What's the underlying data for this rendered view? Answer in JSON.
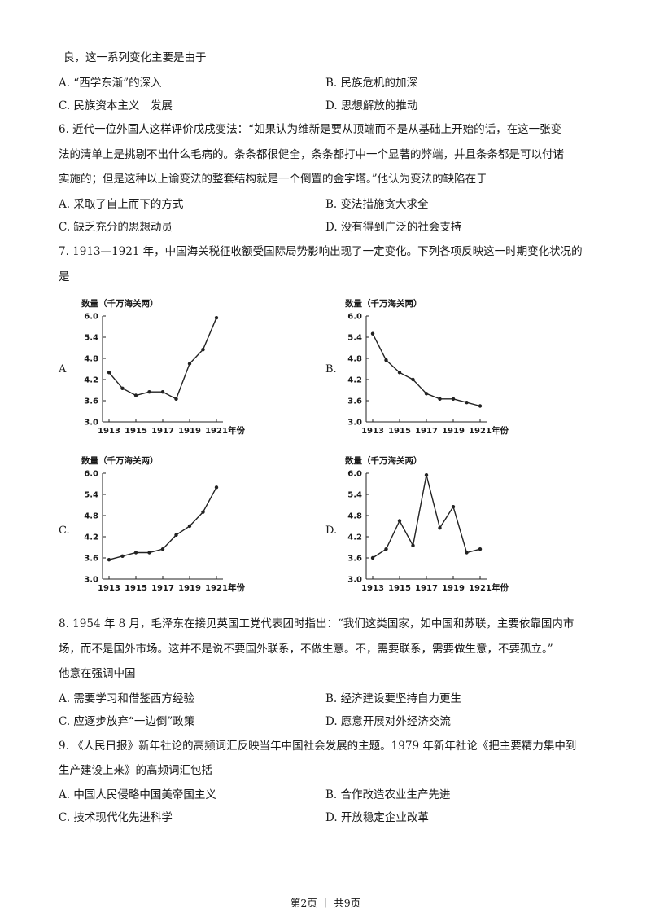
{
  "lines": {
    "l1": "良，这一系列变化主要是由于",
    "q6_1": "6. 近代一位外国人这样评价戊戌变法：“如果认为维新是要从顶端而不是从基础上开始的话，在这一张变",
    "q6_2": "法的清单上是挑剔不出什么毛病的。条条都很健全，条条都打中一个显著的弊端，并且条条都是可以付诸",
    "q6_3": "实施的；但是这种以上谕变法的整套结构就是一个倒置的金字塔。”他认为变法的缺陷在于",
    "q7_1": "7. 1913—1921 年，中国海关税征收额受国际局势影响出现了一定变化。下列各项反映这一时期变化状况的",
    "q7_2": "是",
    "q8_1": "8. 1954 年 8 月，毛泽东在接见英国工党代表团时指出：“我们这类国家，如中国和苏联，主要依靠国内市",
    "q8_2": "场，而不是国外市场。这并不是说不要国外联系，不做生意。不，需要联系，需要做生意，不要孤立。”",
    "q8_3": "他意在强调中国",
    "q9_1": "9. 《人民日报》新年社论的高频词汇反映当年中国社会发展的主题。1979 年新年社论《把主要精力集中到",
    "q9_2": "生产建设上来》的高频词汇包括"
  },
  "q5_options": {
    "a": "A. “西学东渐”的深入",
    "b": "B. 民族危机的加深",
    "c": "C. 民族资本主义　发展",
    "d": "D. 思想解放的推动"
  },
  "q6_options": {
    "a": "A. 采取了自上而下的方式",
    "b": "B. 变法措施贪大求全",
    "c": "C. 缺乏充分的思想动员",
    "d": "D. 没有得到广泛的社会支持"
  },
  "q8_options": {
    "a": "A. 需要学习和借鉴西方经验",
    "b": "B. 经济建设要坚持自力更生",
    "c": "C. 应逐步放弃“一边倒”政策",
    "d": "D. 愿意开展对外经济交流"
  },
  "q9_options": {
    "a": "A. 中国人民侵略中国美帝国主义",
    "b": "B. 合作改造农业生产先进",
    "c": "C. 技术现代化先进科学",
    "d": "D. 开放稳定企业改革"
  },
  "chart_labels": {
    "a": "A",
    "b": "B.",
    "c": "C.",
    "d": "D."
  },
  "chart_data": [
    {
      "type": "line",
      "panel": "A",
      "ylabel": "数量（千万海关两）",
      "xlabel": "年份",
      "x": [
        1913,
        1914,
        1915,
        1916,
        1917,
        1918,
        1919,
        1920,
        1921
      ],
      "values": [
        4.4,
        3.95,
        3.75,
        3.85,
        3.85,
        3.65,
        4.65,
        5.05,
        5.95
      ],
      "ylim": [
        3.0,
        6.0
      ],
      "yticks": [
        "3.0",
        "3.6",
        "4.2",
        "4.8",
        "5.4",
        "6.0"
      ],
      "xticks": [
        "1913",
        "1915",
        "1917",
        "1919",
        "1921"
      ]
    },
    {
      "type": "line",
      "panel": "B",
      "ylabel": "数量（千万海关两）",
      "xlabel": "年份",
      "x": [
        1913,
        1914,
        1915,
        1916,
        1917,
        1918,
        1919,
        1920,
        1921
      ],
      "values": [
        5.5,
        4.75,
        4.4,
        4.2,
        3.8,
        3.65,
        3.65,
        3.55,
        3.45
      ],
      "ylim": [
        3.0,
        6.0
      ],
      "yticks": [
        "3.0",
        "3.6",
        "4.2",
        "4.8",
        "5.4",
        "6.0"
      ],
      "xticks": [
        "1913",
        "1915",
        "1917",
        "1919",
        "1921"
      ]
    },
    {
      "type": "line",
      "panel": "C",
      "ylabel": "数量（千万海关两）",
      "xlabel": "年份",
      "x": [
        1913,
        1914,
        1915,
        1916,
        1917,
        1918,
        1919,
        1920,
        1921
      ],
      "values": [
        3.55,
        3.65,
        3.75,
        3.75,
        3.85,
        4.25,
        4.5,
        4.9,
        5.6
      ],
      "ylim": [
        3.0,
        6.0
      ],
      "yticks": [
        "3.0",
        "3.6",
        "4.2",
        "4.8",
        "5.4",
        "6.0"
      ],
      "xticks": [
        "1913",
        "1915",
        "1917",
        "1919",
        "1921"
      ]
    },
    {
      "type": "line",
      "panel": "D",
      "ylabel": "数量（千万海关两）",
      "xlabel": "年份",
      "x": [
        1913,
        1914,
        1915,
        1916,
        1917,
        1918,
        1919,
        1920,
        1921
      ],
      "values": [
        3.6,
        3.85,
        4.65,
        3.95,
        5.95,
        4.45,
        5.05,
        3.75,
        3.85
      ],
      "ylim": [
        3.0,
        6.0
      ],
      "yticks": [
        "3.0",
        "3.6",
        "4.2",
        "4.8",
        "5.4",
        "6.0"
      ],
      "xticks": [
        "1913",
        "1915",
        "1917",
        "1919",
        "1921"
      ]
    }
  ],
  "footer": "第2页 ｜ 共9页"
}
